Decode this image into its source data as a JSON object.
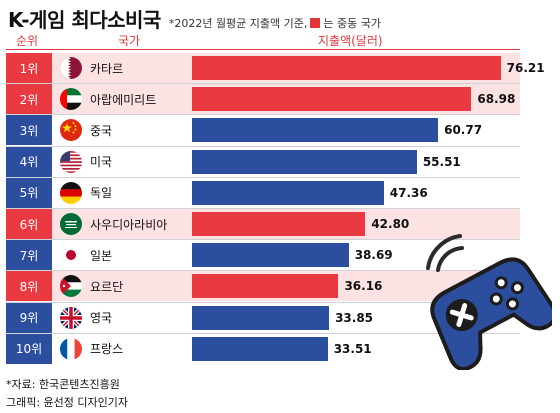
{
  "header": {
    "title": "K-게임 최다소비국",
    "subtitle_before": "*2022년 월평균 지출액 기준,",
    "subtitle_after": "는 중동 국가",
    "col_rank": "순위",
    "col_country": "국가",
    "col_value": "지출액(달러)"
  },
  "colors": {
    "highlight": "#e83a40",
    "base": "#2c4e9e",
    "row_highlight": "#fde2e4"
  },
  "chart_data": {
    "type": "bar",
    "orientation": "horizontal",
    "categories": [
      "카타르",
      "아랍에미리트",
      "중국",
      "미국",
      "독일",
      "사우디아라비아",
      "일본",
      "요르단",
      "영국",
      "프랑스"
    ],
    "ranks": [
      "1위",
      "2위",
      "3위",
      "4위",
      "5위",
      "6위",
      "7위",
      "8위",
      "9위",
      "10위"
    ],
    "values": [
      76.21,
      68.98,
      60.77,
      55.51,
      47.36,
      42.8,
      38.69,
      36.16,
      33.85,
      33.51
    ],
    "value_labels": [
      "76.21",
      "68.98",
      "60.77",
      "55.51",
      "47.36",
      "42.80",
      "38.69",
      "36.16",
      "33.85",
      "33.51"
    ],
    "middle_east": [
      true,
      true,
      false,
      false,
      false,
      true,
      false,
      true,
      false,
      false
    ],
    "flag_icons": [
      "qatar-flag-icon",
      "uae-flag-icon",
      "china-flag-icon",
      "usa-flag-icon",
      "germany-flag-icon",
      "saudi-arabia-flag-icon",
      "japan-flag-icon",
      "jordan-flag-icon",
      "uk-flag-icon",
      "france-flag-icon"
    ],
    "title": "K-게임 최다소비국",
    "xlabel": "",
    "ylabel": "지출액(달러)",
    "xlim": [
      0,
      80
    ],
    "grid": false,
    "legend": "top"
  },
  "footer": {
    "source": "*자료: 한국콘텐츠진흥원",
    "credit": "그래픽: 윤선정 디자인기자"
  },
  "decoration": {
    "icon": "gamepad-icon"
  }
}
